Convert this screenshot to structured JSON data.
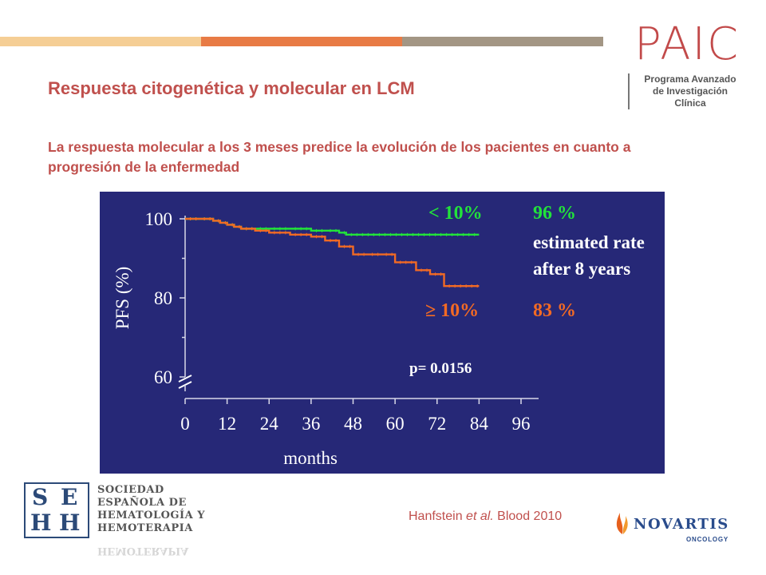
{
  "slide": {
    "title": "Respuesta citogenética y molecular en LCM",
    "subtitle": "La respuesta molecular a los 3 meses predice la evolución de los pacientes en cuanto a progresión de la enfermedad",
    "citation_author": "Hanfstein ",
    "citation_etal": "et al.",
    "citation_journal": " Blood 2010",
    "topbar_colors": [
      "#f5ce95",
      "#e87b45",
      "#a39684"
    ]
  },
  "logos": {
    "paic": {
      "word": "PAIC",
      "line1": "Programa Avanzado",
      "line2": "de Investigación",
      "line3": "Clínica"
    },
    "sehh": {
      "letters": [
        "S",
        "E",
        "H",
        "H"
      ],
      "line1": "SOCIEDAD",
      "line2": "ESPAÑOLA DE",
      "line3": "HEMATOLOGÍA Y",
      "line4": "HEMOTERAPIA"
    },
    "novartis": {
      "word": "NOVARTIS",
      "sub": "ONCOLOGY"
    }
  },
  "chart_data": {
    "type": "line",
    "step": true,
    "background": "#262877",
    "xlabel": "months",
    "ylabel": "PFS (%)",
    "xticks": [
      0,
      12,
      24,
      36,
      48,
      60,
      72,
      84,
      96
    ],
    "yticks": [
      60,
      80,
      100
    ],
    "xlim": [
      0,
      96
    ],
    "ylim": [
      60,
      100
    ],
    "axis_break": true,
    "series": [
      {
        "name": "< 10%",
        "color": "#22e33a",
        "final_rate": "96 %",
        "x": [
          0,
          4,
          8,
          10,
          12,
          14,
          16,
          20,
          24,
          30,
          36,
          40,
          44,
          46,
          84
        ],
        "y": [
          100,
          100,
          99.5,
          99,
          98.5,
          98,
          97.5,
          97.5,
          97.5,
          97.5,
          97,
          97,
          96.5,
          96,
          96
        ]
      },
      {
        "name": "≥ 10%",
        "color": "#f26a24",
        "final_rate": "83 %",
        "x": [
          0,
          4,
          8,
          10,
          12,
          14,
          16,
          20,
          24,
          30,
          36,
          40,
          44,
          48,
          52,
          56,
          60,
          66,
          70,
          74,
          84
        ],
        "y": [
          100,
          100,
          99.5,
          99,
          98.5,
          98,
          97.5,
          97,
          96.5,
          96,
          95.5,
          94.5,
          93,
          91,
          91,
          91,
          89,
          87,
          86,
          83,
          83
        ]
      }
    ],
    "annotations": {
      "header_rate": "estimated rate",
      "header_years": "after 8 years",
      "p_value": "p= 0.0156"
    }
  }
}
